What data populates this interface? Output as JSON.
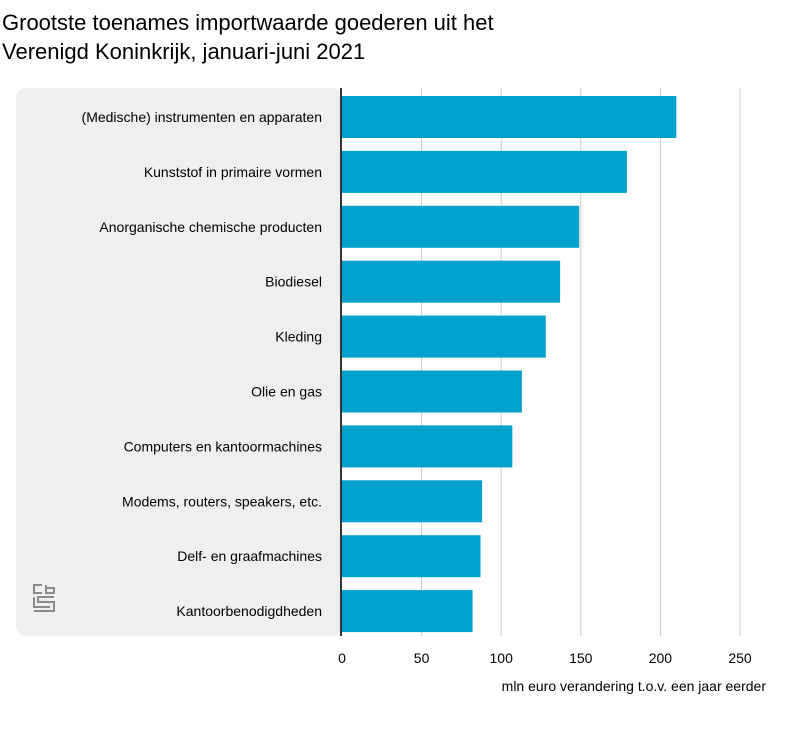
{
  "chart_data": {
    "type": "bar",
    "orientation": "horizontal",
    "title": "  Grootste toenames importwaarde goederen uit het\nVerenigd Koninkrijk, januari-juni 2021",
    "xlabel": "mln euro verandering t.o.v. een jaar eerder",
    "ylabel": "",
    "categories": [
      "(Medische) instrumenten en apparaten",
      "Kunststof in primaire vormen",
      "Anorganische chemische producten",
      "Biodiesel",
      "Kleding",
      "Olie en gas",
      "Computers en kantoormachines",
      "Modems, routers, speakers, etc.",
      "Delf- en graafmachines",
      "Kantoorbenodigdheden"
    ],
    "values": [
      210,
      179,
      149,
      137,
      128,
      113,
      107,
      88,
      87,
      82
    ],
    "xlim": [
      0,
      250
    ],
    "xticks": [
      0,
      50,
      100,
      150,
      200,
      250
    ],
    "grid": true,
    "legend": "none",
    "colors": {
      "bar": "#00a1cd",
      "label_panel": "#efefef",
      "grid": "#cccccc",
      "axis": "#333333",
      "logo": "#8a8a8a"
    }
  },
  "logo": "cbs-logo-icon"
}
